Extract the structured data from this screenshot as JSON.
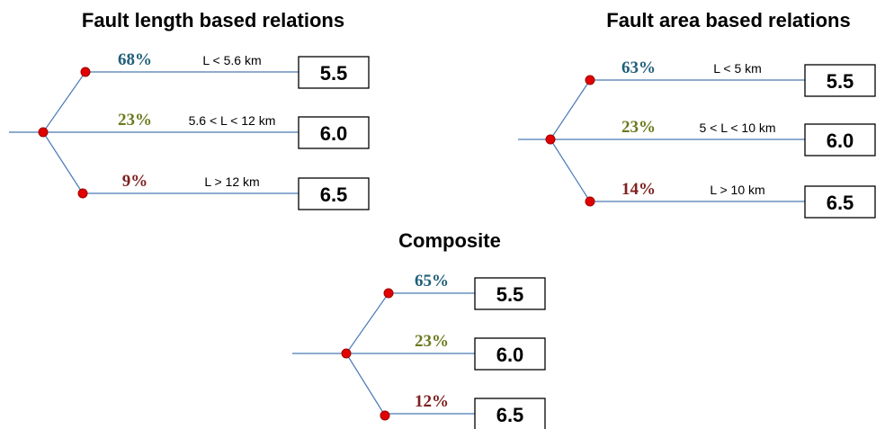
{
  "trees": [
    {
      "title": "Fault length based relations",
      "branches": [
        {
          "weight": "68%",
          "condition": "L < 5.6 km",
          "magnitude": "5.5"
        },
        {
          "weight": "23%",
          "condition": "5.6 < L < 12 km",
          "magnitude": "6.0"
        },
        {
          "weight": "9%",
          "condition": "L > 12 km",
          "magnitude": "6.5"
        }
      ]
    },
    {
      "title": "Fault area based relations",
      "branches": [
        {
          "weight": "63%",
          "condition": "L < 5 km",
          "magnitude": "5.5"
        },
        {
          "weight": "23%",
          "condition": "5 < L < 10 km",
          "magnitude": "6.0"
        },
        {
          "weight": "14%",
          "condition": "L > 10 km",
          "magnitude": "6.5"
        }
      ]
    },
    {
      "title": "Composite",
      "branches": [
        {
          "weight": "65%",
          "magnitude": "5.5"
        },
        {
          "weight": "23%",
          "magnitude": "6.0"
        },
        {
          "weight": "12%",
          "magnitude": "6.5"
        }
      ]
    }
  ]
}
